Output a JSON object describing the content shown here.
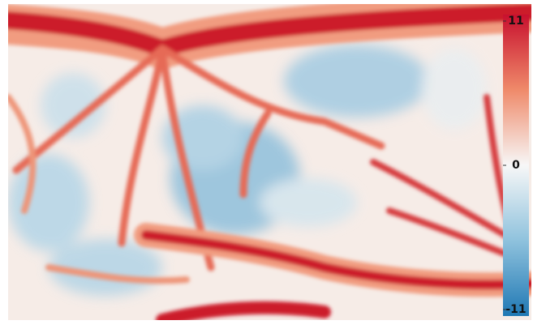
{
  "colorbar": {
    "range": [
      -11,
      11
    ],
    "ticks": [
      11,
      0,
      -11
    ]
  }
}
